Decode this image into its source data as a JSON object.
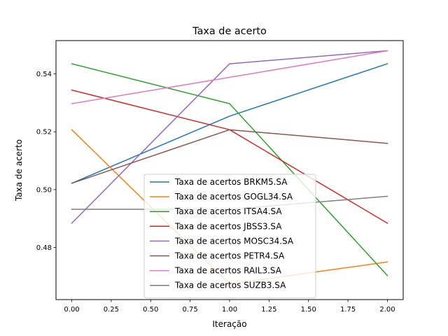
{
  "chart_data": {
    "type": "line",
    "title": "Taxa de acerto",
    "xlabel": "Iteração",
    "ylabel": "Taxa de acerto",
    "xlim": [
      -0.1,
      2.1
    ],
    "ylim": [
      0.462,
      0.5515
    ],
    "x": [
      0,
      1,
      2
    ],
    "xticks": [
      0.0,
      0.25,
      0.5,
      0.75,
      1.0,
      1.25,
      1.5,
      1.75,
      2.0
    ],
    "xtick_labels": [
      "0.00",
      "0.25",
      "0.50",
      "0.75",
      "1.00",
      "1.25",
      "1.50",
      "1.75",
      "2.00"
    ],
    "yticks": [
      0.48,
      0.5,
      0.52,
      0.54
    ],
    "ytick_labels": [
      "0.48",
      "0.50",
      "0.52",
      "0.54"
    ],
    "grid": false,
    "legend_position": "lower center",
    "series": [
      {
        "name": "Taxa de acertos BRKM5.SA",
        "color": "#1f77b4",
        "values": [
          0.5022,
          0.5254,
          0.5435
        ]
      },
      {
        "name": "Taxa de acertos GOGL34.SA",
        "color": "#ff7f0e",
        "values": [
          0.5207,
          0.4674,
          0.475
        ]
      },
      {
        "name": "Taxa de acertos ITSA4.SA",
        "color": "#2ca02c",
        "values": [
          0.5435,
          0.5297,
          0.4703
        ]
      },
      {
        "name": "Taxa de acertos JBSS3.SA",
        "color": "#d62728",
        "values": [
          0.5344,
          0.5207,
          0.4884
        ]
      },
      {
        "name": "Taxa de acertos MOSC34.SA",
        "color": "#9467bd",
        "values": [
          0.4884,
          0.5435,
          0.548
        ]
      },
      {
        "name": "Taxa de acertos PETR4.SA",
        "color": "#8c564b",
        "values": [
          0.5022,
          0.5207,
          0.516
        ]
      },
      {
        "name": "Taxa de acertos RAIL3.SA",
        "color": "#e377c2",
        "values": [
          0.5297,
          0.5388,
          0.548
        ]
      },
      {
        "name": "Taxa de acertos SUZB3.SA",
        "color": "#7f7f7f",
        "values": [
          0.4932,
          0.4932,
          0.4977
        ]
      }
    ]
  }
}
